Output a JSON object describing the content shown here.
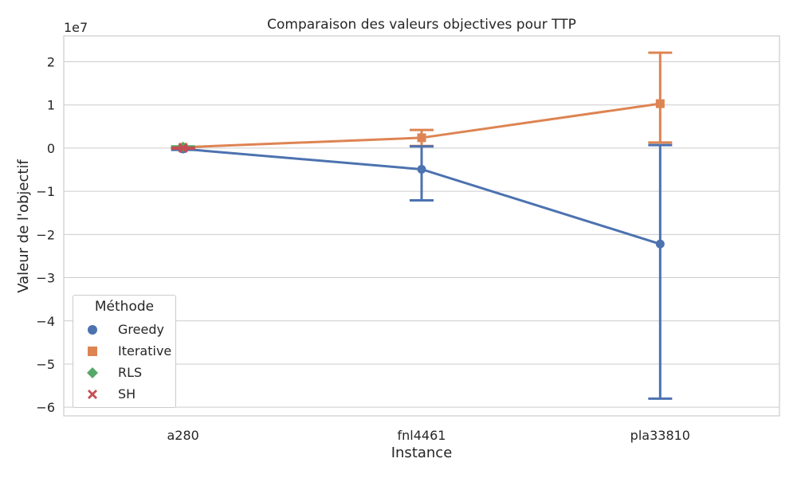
{
  "chart_data": {
    "type": "line",
    "title": "Comparaison des valeurs objectives pour TTP",
    "xlabel": "Instance",
    "ylabel": "Valeur de l'objectif",
    "y_scale_label": "1e7",
    "categories": [
      "a280",
      "fnl4461",
      "pla33810"
    ],
    "ylim": [
      -6.2,
      2.6
    ],
    "yticks": [
      2,
      1,
      0,
      -1,
      -2,
      -3,
      -4,
      -5,
      -6
    ],
    "ytick_labels": [
      "2",
      "1",
      "0",
      "−1",
      "−2",
      "−3",
      "−4",
      "−5",
      "−6"
    ],
    "grid": true,
    "legend_position": "lower-left",
    "series": [
      {
        "name": "Greedy",
        "color": "#4c72b0",
        "marker": "circle",
        "values": [
          -0.02,
          -0.49,
          -2.22
        ],
        "err_low": [
          -0.04,
          -1.21,
          -5.8
        ],
        "err_high": [
          0.0,
          0.04,
          0.07
        ]
      },
      {
        "name": "Iterative",
        "color": "#dd8452",
        "marker": "square",
        "values": [
          0.02,
          0.24,
          1.03
        ],
        "err_low": [
          0.01,
          0.05,
          0.13
        ],
        "err_high": [
          0.03,
          0.42,
          2.21
        ]
      },
      {
        "name": "RLS",
        "color": "#55a868",
        "marker": "diamond",
        "values": [
          0.03,
          null,
          null
        ],
        "err_low": [
          0.02,
          null,
          null
        ],
        "err_high": [
          0.04,
          null,
          null
        ]
      },
      {
        "name": "SH",
        "color": "#c44e52",
        "marker": "x",
        "values": [
          0.0,
          null,
          null
        ],
        "err_low": [
          -0.01,
          null,
          null
        ],
        "err_high": [
          0.01,
          null,
          null
        ]
      }
    ]
  },
  "legend": {
    "title": "Méthode",
    "items": [
      "Greedy",
      "Iterative",
      "RLS",
      "SH"
    ]
  }
}
